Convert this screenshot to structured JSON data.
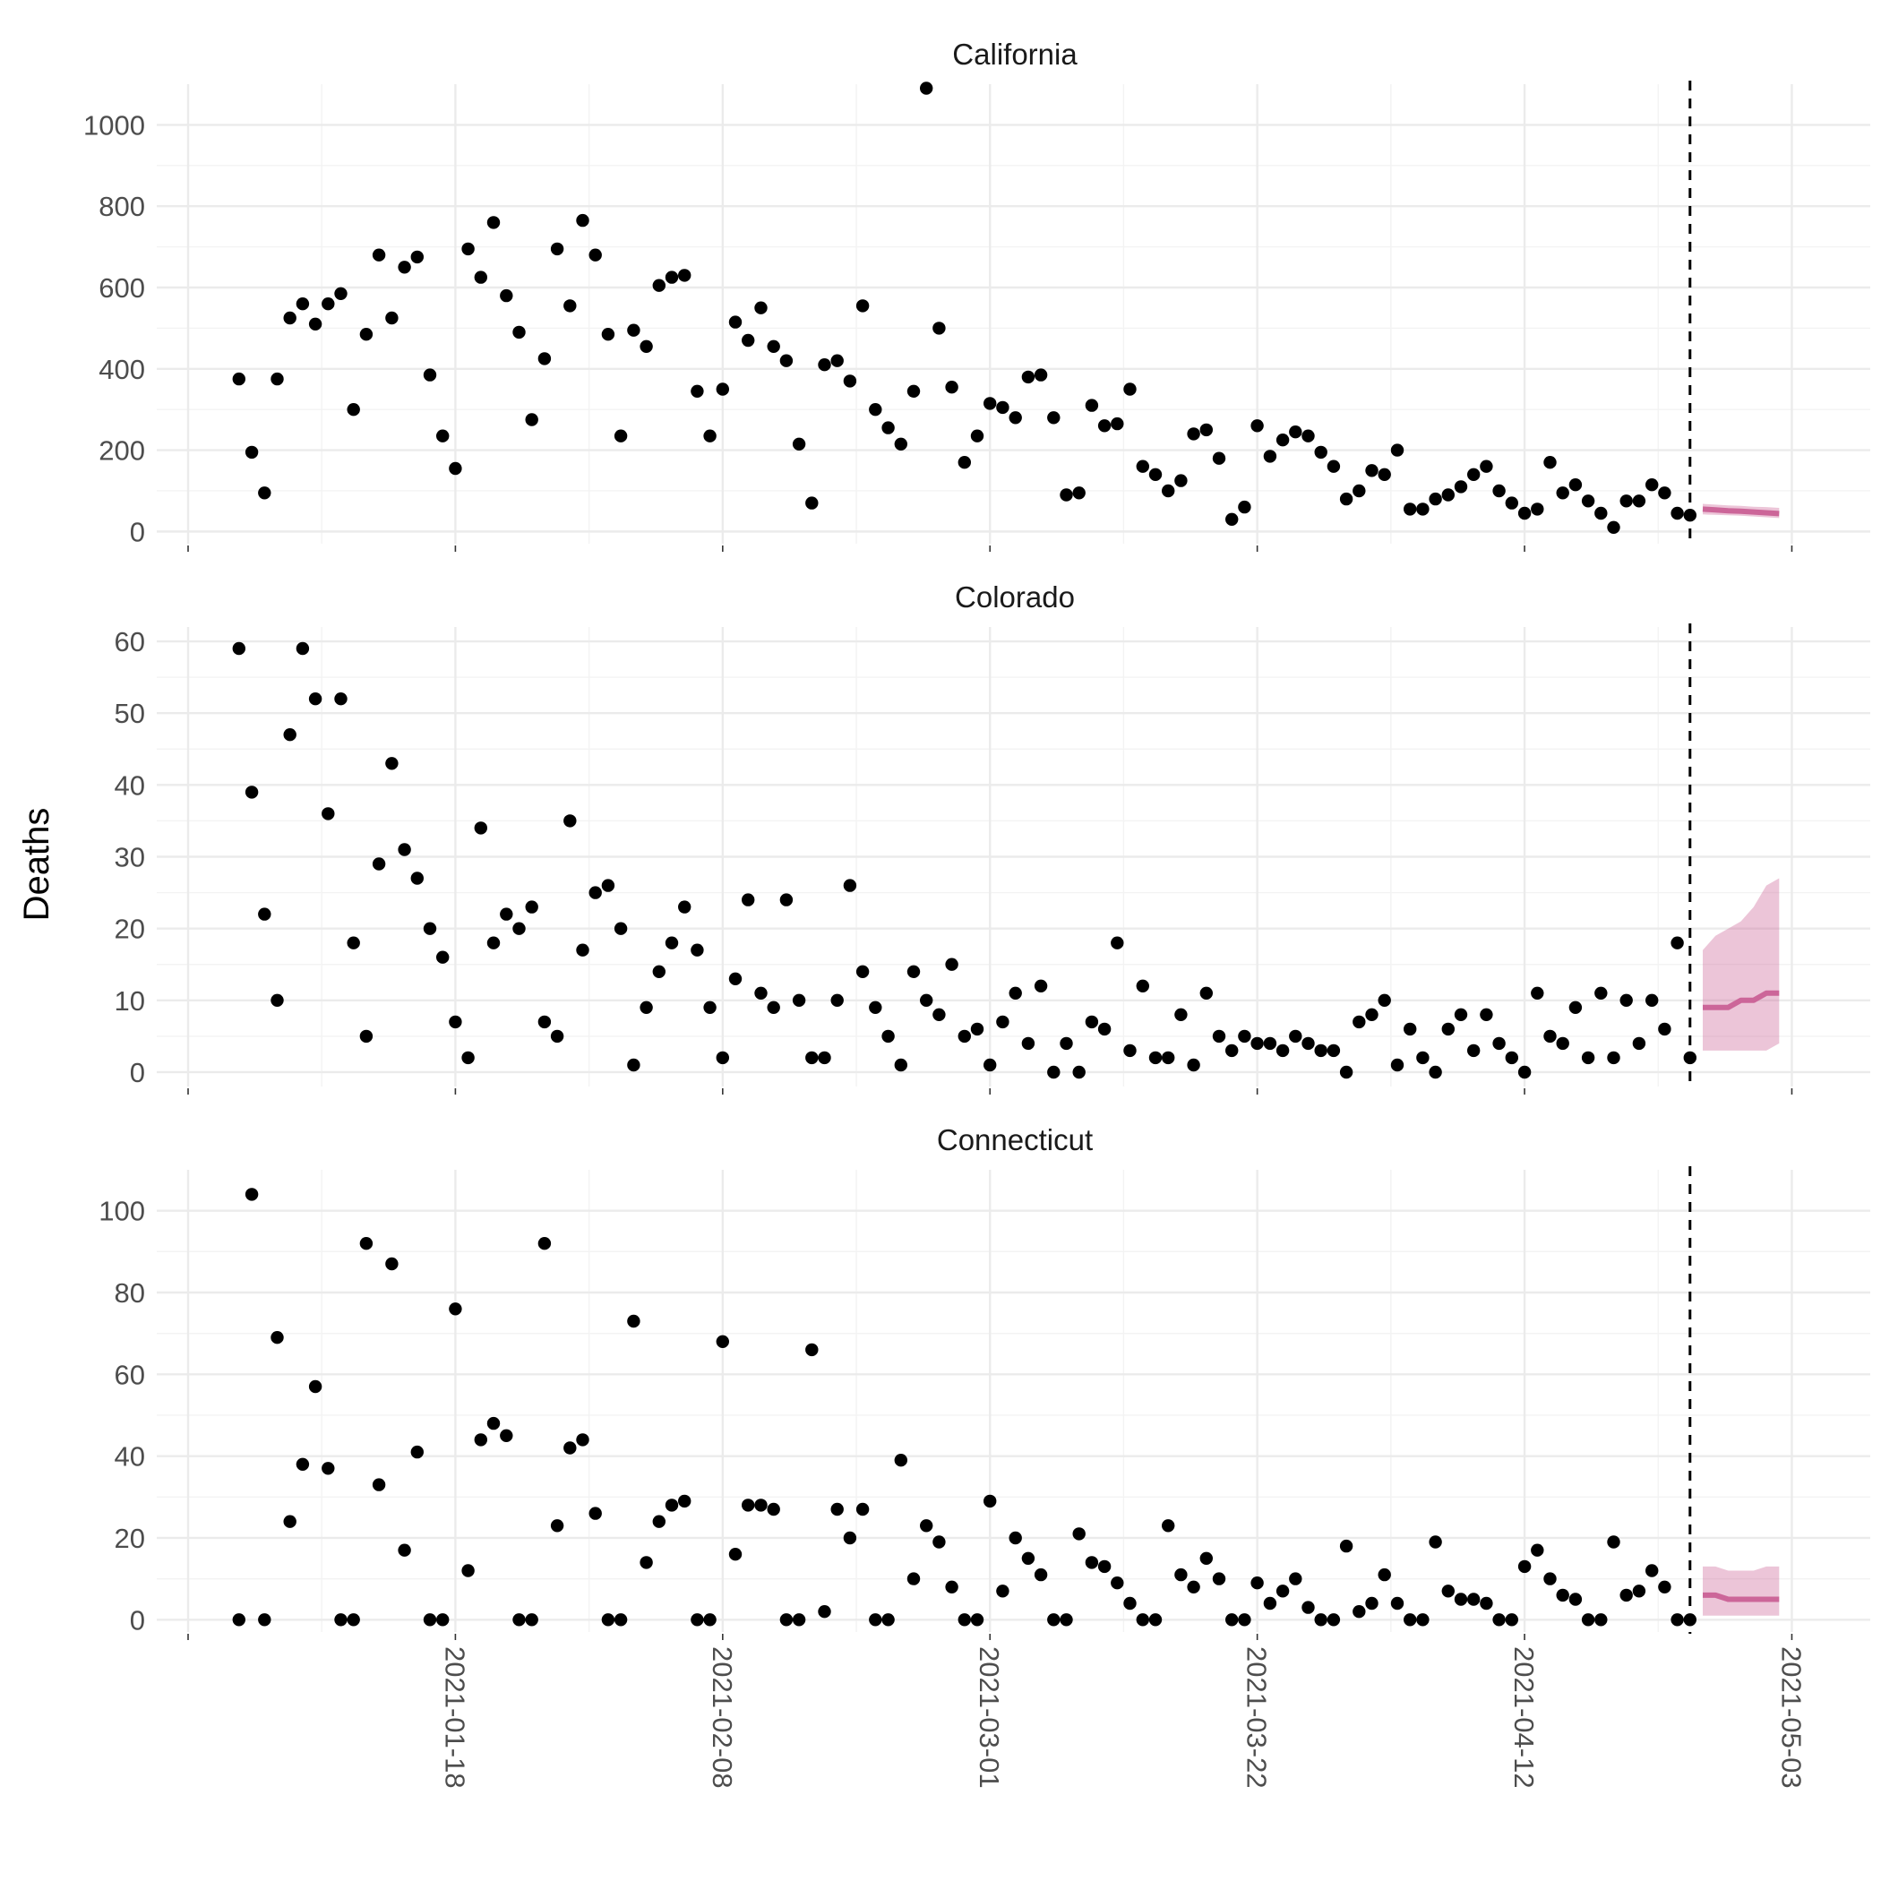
{
  "chart_data": {
    "type": "scatter",
    "ylabel": "Deaths",
    "forecast_date": "2021-04-25",
    "x_ticks": [
      "2021-01-18",
      "2021-02-08",
      "2021-03-01",
      "2021-03-22",
      "2021-04-12",
      "2021-05-03"
    ],
    "start_date": "2021-01-01",
    "colors": {
      "points": "#000000",
      "forecast": "#cc6699",
      "interval": "#cc6699",
      "grid": "#ebebeb"
    },
    "panels": [
      {
        "title": "California",
        "ylim": [
          -30,
          1100
        ],
        "yticks": [
          0,
          200,
          400,
          600,
          800,
          1000
        ],
        "y": [
          375,
          195,
          95,
          375,
          525,
          560,
          510,
          560,
          585,
          300,
          485,
          680,
          525,
          650,
          675,
          385,
          235,
          155,
          695,
          625,
          760,
          580,
          490,
          275,
          425,
          695,
          555,
          765,
          680,
          485,
          235,
          495,
          455,
          605,
          625,
          630,
          345,
          235,
          350,
          515,
          470,
          550,
          455,
          420,
          215,
          70,
          410,
          420,
          370,
          555,
          300,
          255,
          215,
          345,
          1090,
          500,
          355,
          170,
          235,
          315,
          305,
          280,
          380,
          385,
          280,
          90,
          95,
          310,
          260,
          265,
          350,
          160,
          140,
          100,
          125,
          240,
          250,
          180,
          30,
          60,
          260,
          185,
          225,
          245,
          235,
          195,
          160,
          80,
          100,
          150,
          140,
          200,
          55,
          55,
          80,
          90,
          110,
          140,
          160,
          100,
          70,
          45,
          55,
          170,
          95,
          115,
          75,
          45,
          10,
          75,
          75,
          115,
          95,
          45,
          40
        ],
        "forecast": {
          "dates": [
            "2021-04-26",
            "2021-04-27",
            "2021-04-28",
            "2021-04-29",
            "2021-04-30",
            "2021-05-01",
            "2021-05-02"
          ],
          "median": [
            55,
            53,
            51,
            50,
            48,
            46,
            44
          ],
          "lower": [
            42,
            41,
            40,
            39,
            37,
            35,
            33
          ],
          "upper": [
            68,
            66,
            64,
            63,
            61,
            60,
            58
          ]
        }
      },
      {
        "title": "Colorado",
        "ylim": [
          -2,
          62
        ],
        "yticks": [
          0,
          10,
          20,
          30,
          40,
          50,
          60
        ],
        "y": [
          59,
          39,
          22,
          10,
          47,
          59,
          52,
          36,
          52,
          18,
          5,
          29,
          43,
          31,
          27,
          20,
          16,
          7,
          2,
          34,
          18,
          22,
          20,
          23,
          7,
          5,
          35,
          17,
          25,
          26,
          20,
          1,
          9,
          14,
          18,
          23,
          17,
          9,
          2,
          13,
          24,
          11,
          9,
          24,
          10,
          2,
          2,
          10,
          26,
          14,
          9,
          5,
          1,
          14,
          10,
          8,
          15,
          5,
          6,
          1,
          7,
          11,
          4,
          12,
          0,
          4,
          0,
          7,
          6,
          18,
          3,
          12,
          2,
          2,
          8,
          1,
          11,
          5,
          3,
          5,
          4,
          4,
          3,
          5,
          4,
          3,
          3,
          0,
          7,
          8,
          10,
          1,
          6,
          2,
          0,
          6,
          8,
          3,
          8,
          4,
          2,
          0,
          11,
          5,
          4,
          9,
          2,
          11,
          2,
          10,
          4,
          10,
          6,
          18,
          2
        ],
        "forecast": {
          "dates": [
            "2021-04-26",
            "2021-04-27",
            "2021-04-28",
            "2021-04-29",
            "2021-04-30",
            "2021-05-01",
            "2021-05-02"
          ],
          "median": [
            9,
            9,
            9,
            10,
            10,
            11,
            11
          ],
          "lower": [
            3,
            3,
            3,
            3,
            3,
            3,
            4
          ],
          "upper": [
            17,
            19,
            20,
            21,
            23,
            26,
            27
          ]
        }
      },
      {
        "title": "Connecticut",
        "ylim": [
          -3,
          110
        ],
        "yticks": [
          0,
          20,
          40,
          60,
          80,
          100
        ],
        "y": [
          0,
          104,
          0,
          69,
          24,
          38,
          57,
          37,
          0,
          0,
          92,
          33,
          87,
          17,
          41,
          0,
          0,
          76,
          12,
          44,
          48,
          45,
          0,
          0,
          92,
          23,
          42,
          44,
          26,
          0,
          0,
          73,
          14,
          24,
          28,
          29,
          0,
          0,
          68,
          16,
          28,
          28,
          27,
          0,
          0,
          66,
          2,
          27,
          20,
          27,
          0,
          0,
          39,
          10,
          23,
          19,
          8,
          0,
          0,
          29,
          7,
          20,
          15,
          11,
          0,
          0,
          21,
          14,
          13,
          9,
          4,
          0,
          0,
          23,
          11,
          8,
          15,
          10,
          0,
          0,
          9,
          4,
          7,
          10,
          3,
          0,
          0,
          18,
          2,
          4,
          11,
          4,
          0,
          0,
          19,
          7,
          5,
          5,
          4,
          0,
          0,
          13,
          17,
          10,
          6,
          5,
          0,
          0,
          19,
          6,
          7,
          12,
          8,
          0,
          0
        ],
        "forecast": {
          "dates": [
            "2021-04-26",
            "2021-04-27",
            "2021-04-28",
            "2021-04-29",
            "2021-04-30",
            "2021-05-01",
            "2021-05-02"
          ],
          "median": [
            6,
            6,
            5,
            5,
            5,
            5,
            5
          ],
          "lower": [
            1,
            1,
            1,
            1,
            1,
            1,
            1
          ],
          "upper": [
            13,
            13,
            12,
            12,
            12,
            13,
            13
          ]
        }
      }
    ]
  }
}
